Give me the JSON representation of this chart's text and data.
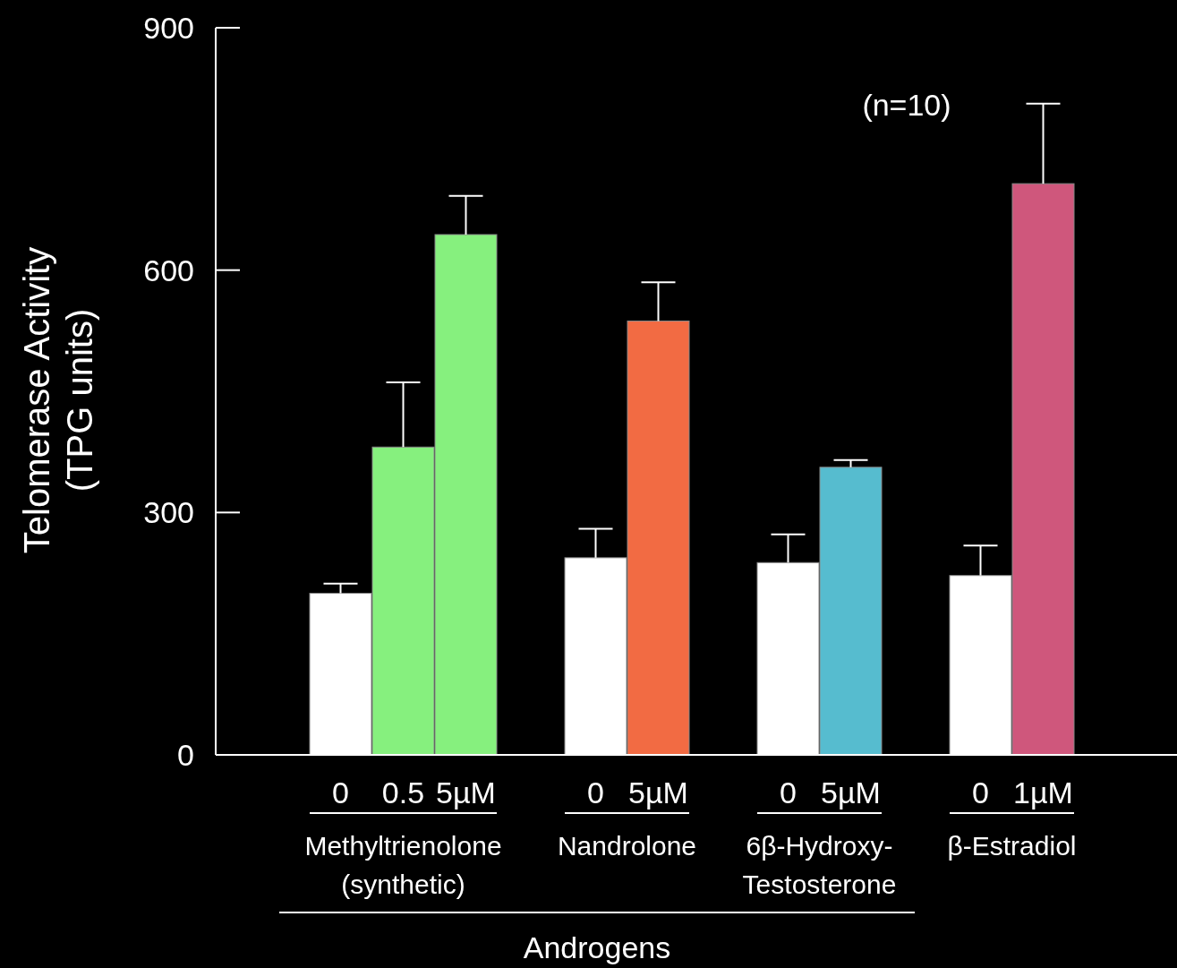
{
  "chart_data": {
    "type": "bar",
    "ylabel": "Telomerase Activity\n(TPG units)",
    "categories": [
      "0",
      "0.5",
      "5µM",
      "0",
      "5µM",
      "0",
      "5µM",
      "0",
      "1µM"
    ],
    "values": [
      200,
      381,
      644,
      244,
      537,
      238,
      356,
      222,
      707
    ],
    "errors": [
      [
        200,
        212
      ],
      [
        381,
        461
      ],
      [
        644,
        692
      ],
      [
        244,
        280
      ],
      [
        537,
        585
      ],
      [
        238,
        273
      ],
      [
        356,
        365
      ],
      [
        222,
        259
      ],
      [
        707,
        806
      ]
    ],
    "colors": [
      "#ffffff",
      "#86f07e",
      "#86f07e",
      "#ffffff",
      "#f26b43",
      "#ffffff",
      "#56bccf",
      "#ffffff",
      "#cf577c"
    ],
    "ylim": [
      0,
      900
    ],
    "yticks": [
      0,
      300,
      600,
      900
    ],
    "grid": false,
    "annotations": [
      "Methyltrienolone\n(synthetic)",
      "Nandrolone",
      "6β-Hydroxy-\nTestosterone",
      "β-Estradiol",
      "Androgens",
      "(n=10)"
    ]
  }
}
